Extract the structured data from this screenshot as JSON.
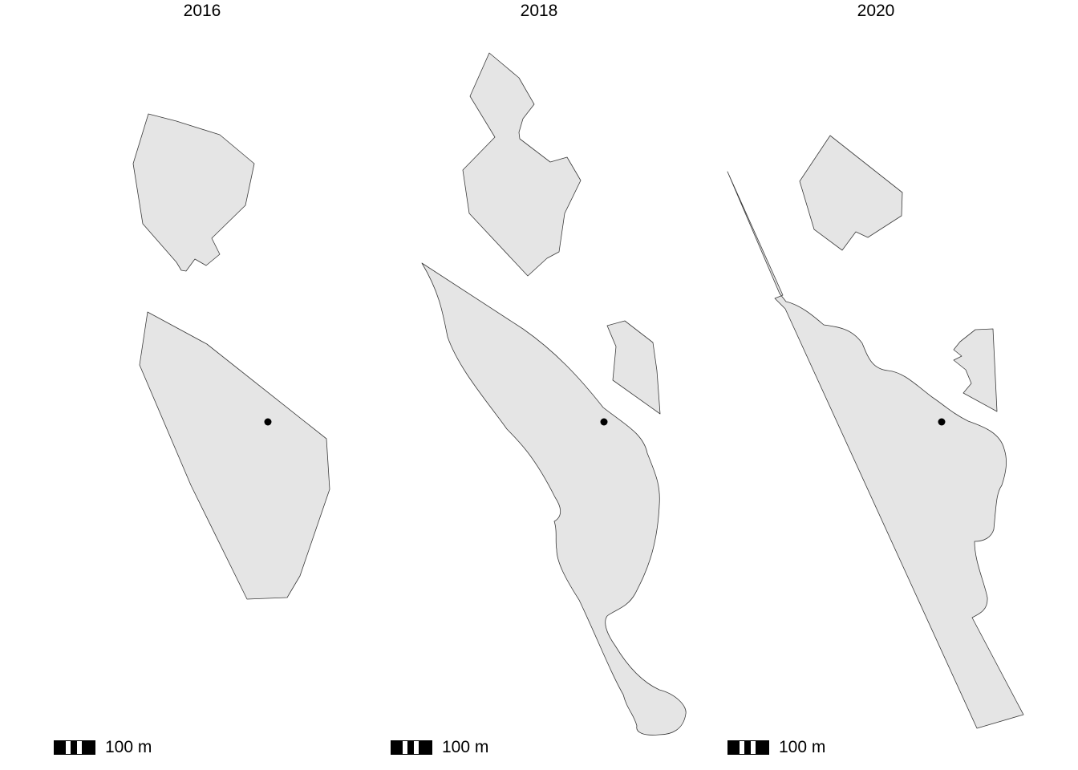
{
  "panels": [
    {
      "title": "2016",
      "scale_label": "100 m"
    },
    {
      "title": "2018",
      "scale_label": "100 m"
    },
    {
      "title": "2020",
      "scale_label": "100 m"
    }
  ],
  "colors": {
    "polygon_fill": "#e5e5e5",
    "polygon_stroke": "#3a3a3a",
    "point": "#000000"
  }
}
